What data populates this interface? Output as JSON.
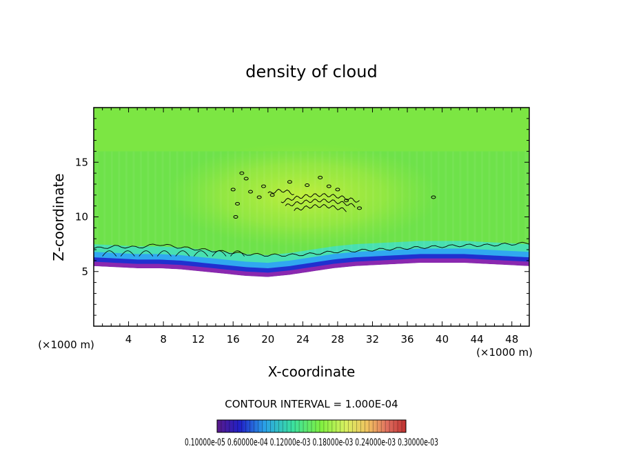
{
  "chart_data": {
    "type": "heatmap",
    "title": "density of cloud",
    "xlabel": "X-coordinate",
    "ylabel": "Z-coordinate",
    "x_unit_left": "(×1000 m)",
    "x_unit_right": "(×1000 m)",
    "xlim": [
      0,
      50
    ],
    "ylim": [
      0,
      20
    ],
    "xticks": [
      4,
      8,
      12,
      16,
      20,
      24,
      28,
      32,
      36,
      40,
      44,
      48
    ],
    "yticks": [
      5,
      10,
      15
    ],
    "contour_interval_text": "CONTOUR INTERVAL = 1.000E-04",
    "colorbar_labels_text": "0.10000e-05 0.60000e-04 0.12000e-03 0.18000e-03 0.24000e-03 0.30000e-03",
    "colorbar_colors": [
      "#5a1a8a",
      "#2020c8",
      "#2aa0e8",
      "#3ae0a0",
      "#80f040",
      "#d8f060",
      "#f0c060",
      "#e07060",
      "#c03030"
    ],
    "field": {
      "cloud_base_km": [
        7.1,
        7.3,
        7.2,
        7.5,
        7.2,
        7.0,
        6.8,
        6.6,
        6.5,
        6.5,
        6.6,
        6.8,
        6.9,
        7.0,
        7.1,
        7.2,
        7.3,
        7.4,
        7.4,
        7.5,
        7.6
      ],
      "lower_edge_km": [
        5.5,
        5.4,
        5.3,
        5.3,
        5.2,
        5.0,
        4.8,
        4.6,
        4.5,
        4.7,
        5.0,
        5.3,
        5.5,
        5.6,
        5.7,
        5.8,
        5.8,
        5.8,
        5.7,
        5.6,
        5.5
      ],
      "base_x_km": [
        0,
        2.5,
        5,
        7.5,
        10,
        12.5,
        15,
        17.5,
        20,
        22.5,
        25,
        27.5,
        30,
        32.5,
        35,
        37.5,
        40,
        42.5,
        45,
        47.5,
        50
      ],
      "core_center_km": [
        24,
        12
      ],
      "core_extent_km": [
        15,
        30,
        10,
        14
      ]
    }
  }
}
